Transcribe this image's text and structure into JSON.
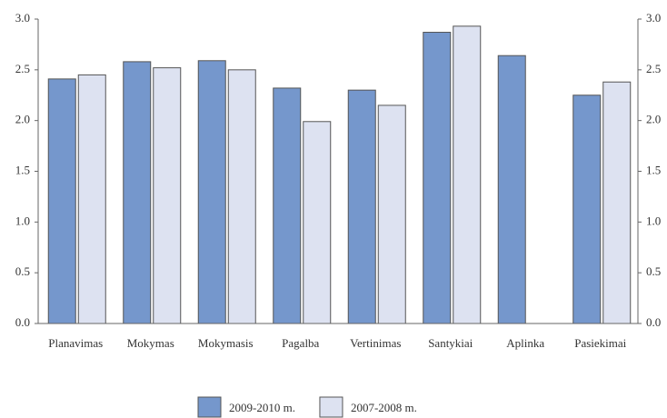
{
  "chart_data": {
    "type": "bar",
    "categories": [
      "Planavimas",
      "Mokymas",
      "Mokymasis",
      "Pagalba",
      "Vertinimas",
      "Santykiai",
      "Aplinka",
      "Pasiekimai"
    ],
    "series": [
      {
        "name": "2009-2010 m.",
        "color": "#7597cc",
        "values": [
          2.41,
          2.58,
          2.59,
          2.32,
          2.3,
          2.87,
          2.64,
          2.25
        ]
      },
      {
        "name": "2007-2008 m.",
        "color": "#dde2f1",
        "values": [
          2.45,
          2.52,
          2.5,
          1.99,
          2.15,
          2.93,
          null,
          2.38
        ]
      }
    ],
    "ylim": [
      0,
      3
    ],
    "yticks": [
      {
        "value": 0,
        "label": "0.0"
      },
      {
        "value": 0.5,
        "label": "0.5"
      },
      {
        "value": 1,
        "label": "1.0"
      },
      {
        "value": 1.5,
        "label": "1.5"
      },
      {
        "value": 2,
        "label": "2.0"
      },
      {
        "value": 2.5,
        "label": "2.5"
      },
      {
        "value": 3,
        "label": "3.0"
      }
    ],
    "y2lim": [
      0,
      3
    ],
    "y2ticks": [
      {
        "value": 0,
        "label": "0.0"
      },
      {
        "value": 0.5,
        "label": "0.5"
      },
      {
        "value": 1,
        "label": "1.0"
      },
      {
        "value": 1.5,
        "label": "1.5"
      },
      {
        "value": 2,
        "label": "2.0"
      },
      {
        "value": 2.5,
        "label": "2.5"
      },
      {
        "value": 3,
        "label": "3.0"
      }
    ],
    "grid": false,
    "legend": "bottom"
  }
}
